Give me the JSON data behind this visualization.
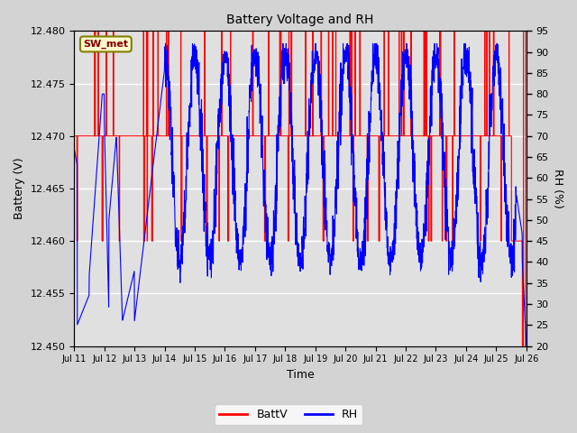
{
  "title": "Battery Voltage and RH",
  "xlabel": "Time",
  "ylabel_left": "Battery (V)",
  "ylabel_right": "RH (%)",
  "ylim_left": [
    12.45,
    12.48
  ],
  "ylim_right": [
    20,
    95
  ],
  "yticks_left": [
    12.45,
    12.455,
    12.46,
    12.465,
    12.47,
    12.475,
    12.48
  ],
  "yticks_right": [
    20,
    25,
    30,
    35,
    40,
    45,
    50,
    55,
    60,
    65,
    70,
    75,
    80,
    85,
    90,
    95
  ],
  "xtick_labels": [
    "Jul 11",
    "Jul 12",
    "Jul 13",
    "Jul 14",
    "Jul 15",
    "Jul 16",
    "Jul 17",
    "Jul 18",
    "Jul 19",
    "Jul 20",
    "Jul 21",
    "Jul 22",
    "Jul 23",
    "Jul 24",
    "Jul 25",
    "Jul 26"
  ],
  "annotation_text": "SW_met",
  "batt_color": "#FF0000",
  "rh_color": "#0000FF",
  "bg_color": "#D3D3D3",
  "plot_bg_inner": "#E8E8E8",
  "plot_bg_outer": "#D3D3D3",
  "legend_batt": "BattV",
  "legend_rh": "RH",
  "n_days": 15,
  "n_per_day": 144
}
